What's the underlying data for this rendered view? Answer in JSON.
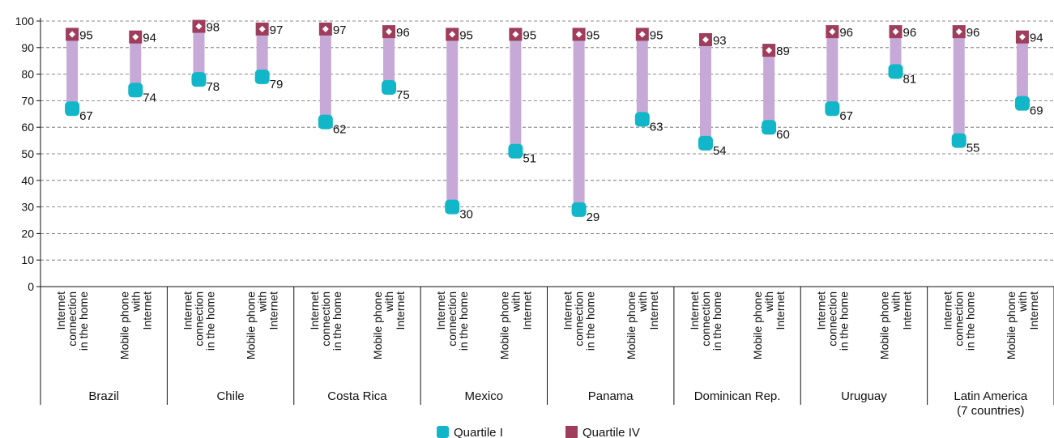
{
  "chart_data": {
    "type": "dumbbell",
    "ylim": [
      0,
      100
    ],
    "yticks": [
      0,
      10,
      20,
      30,
      40,
      50,
      60,
      70,
      80,
      90,
      100
    ],
    "colors": {
      "q1": "#12b6c9",
      "q4": "#9e3d5c",
      "range": "#c6a9d6",
      "grid": "#666666"
    },
    "legend": {
      "q1": "Quartile I",
      "q4": "Quartile IV",
      "placement": "bottom-center"
    },
    "groups": [
      {
        "name": "Brazil",
        "items": [
          {
            "label": "Internet connection in the home",
            "q1": 67,
            "q4": 95
          },
          {
            "label": "Mobile phone with Internet",
            "q1": 74,
            "q4": 94
          }
        ]
      },
      {
        "name": "Chile",
        "items": [
          {
            "label": "Internet connection in the home",
            "q1": 78,
            "q4": 98
          },
          {
            "label": "Mobile phone with Internet",
            "q1": 79,
            "q4": 97
          }
        ]
      },
      {
        "name": "Costa Rica",
        "items": [
          {
            "label": "Internet connection in the home",
            "q1": 62,
            "q4": 97
          },
          {
            "label": "Mobile phone with Internet",
            "q1": 75,
            "q4": 96
          }
        ]
      },
      {
        "name": "Mexico",
        "items": [
          {
            "label": "Internet connection in the home",
            "q1": 30,
            "q4": 95
          },
          {
            "label": "Mobile phone with Internet",
            "q1": 51,
            "q4": 95
          }
        ]
      },
      {
        "name": "Panama",
        "items": [
          {
            "label": "Internet connection in the home",
            "q1": 29,
            "q4": 95
          },
          {
            "label": "Mobile phone with Internet",
            "q1": 63,
            "q4": 95
          }
        ]
      },
      {
        "name": "Dominican Rep.",
        "items": [
          {
            "label": "Internet connection in the home",
            "q1": 54,
            "q4": 93
          },
          {
            "label": "Mobile phone with Internet",
            "q1": 60,
            "q4": 89
          }
        ]
      },
      {
        "name": "Uruguay",
        "items": [
          {
            "label": "Internet connection in the home",
            "q1": 67,
            "q4": 96
          },
          {
            "label": "Mobile phone with Internet",
            "q1": 81,
            "q4": 96
          }
        ]
      },
      {
        "name": "Latin America (7 countries)",
        "items": [
          {
            "label": "Internet connection in the home",
            "q1": 55,
            "q4": 96
          },
          {
            "label": "Mobile phone with Internet",
            "q1": 69,
            "q4": 94
          }
        ]
      }
    ]
  }
}
